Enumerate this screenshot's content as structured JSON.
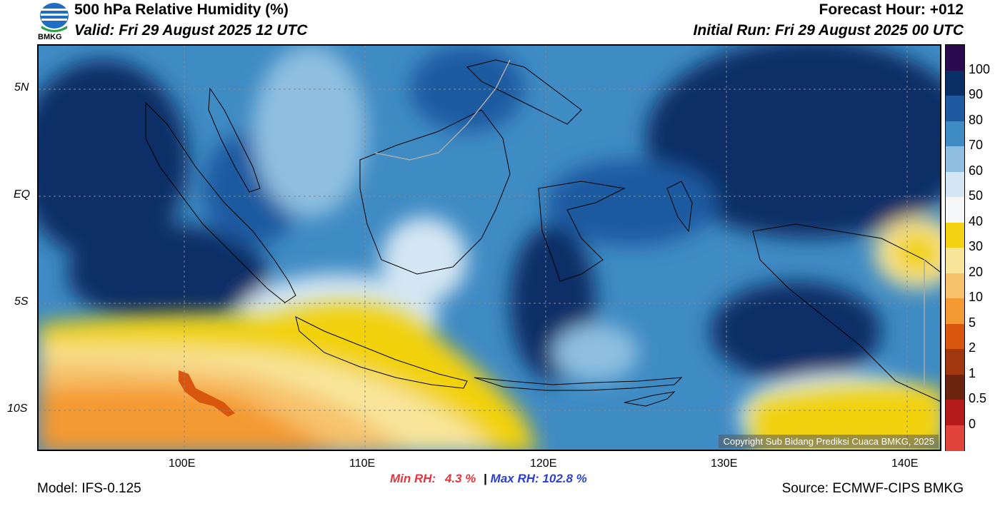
{
  "header": {
    "title": "500 hPa Relative Humidity (%)",
    "valid": "Valid: Fri 29 August 2025 12 UTC",
    "forecast_hour": "Forecast Hour: +012",
    "initial_run": "Initial Run: Fri 29 August 2025 00 UTC",
    "logo_text": "BMKG"
  },
  "axes": {
    "lat_labels": [
      "5N",
      "EQ",
      "5S",
      "10S"
    ],
    "lon_labels": [
      "100E",
      "110E",
      "120E",
      "130E",
      "140E"
    ]
  },
  "colorbar": {
    "labels": [
      "100",
      "90",
      "80",
      "70",
      "60",
      "50",
      "40",
      "30",
      "20",
      "10",
      "5",
      "2",
      "1",
      "0.5",
      "0"
    ],
    "colors": [
      "#2c0a4f",
      "#0a2f66",
      "#1f5aa0",
      "#3f8bc4",
      "#8ebfe0",
      "#d4e6f3",
      "#f4f6f8",
      "#f2d211",
      "#f8e59a",
      "#f7c26a",
      "#f49a33",
      "#d9560e",
      "#a1370f",
      "#6b2410",
      "#b51b1b",
      "#e0443a"
    ]
  },
  "stats": {
    "min_label": "Min RH:",
    "min_value": "4.3 %",
    "separator": "|",
    "max_label": "Max RH:",
    "max_value": "102.8 %"
  },
  "footer": {
    "model": "Model: IFS-0.125",
    "source": "Source: ECMWF-CIPS BMKG",
    "copyright": "Copyright Sub Bidang Prediksi Cuaca BMKG, 2025"
  }
}
